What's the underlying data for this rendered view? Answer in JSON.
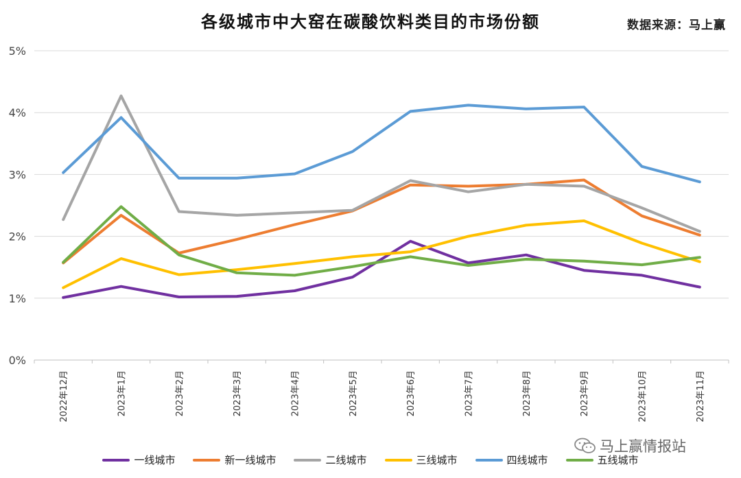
{
  "header": {
    "title": "各级城市中大窑在碳酸饮料类目的市场份额",
    "source_label": "数据来源：",
    "source_value": "马上赢"
  },
  "watermark": {
    "text": "马上赢情报站",
    "icon": "wechat-icon"
  },
  "chart_data": {
    "type": "line",
    "title": "各级城市中大窑在碳酸饮料类目的市场份额",
    "categories": [
      "2022年12月",
      "2023年1月",
      "2023年2月",
      "2023年3月",
      "2023年4月",
      "2023年5月",
      "2023年6月",
      "2023年7月",
      "2023年8月",
      "2023年9月",
      "2023年10月",
      "2023年11月"
    ],
    "ylim": [
      0,
      5
    ],
    "yticks": [
      "0%",
      "1%",
      "2%",
      "3%",
      "4%",
      "5%"
    ],
    "grid": true,
    "legend": "bottom",
    "series": [
      {
        "name": "一线城市",
        "color": "#7030A0",
        "values": [
          1.01,
          1.19,
          1.02,
          1.03,
          1.12,
          1.34,
          1.92,
          1.57,
          1.7,
          1.45,
          1.37,
          1.18
        ]
      },
      {
        "name": "新一线城市",
        "color": "#ED7D31",
        "values": [
          1.57,
          2.34,
          1.73,
          1.95,
          2.19,
          2.41,
          2.83,
          2.81,
          2.84,
          2.91,
          2.33,
          2.02
        ]
      },
      {
        "name": "二线城市",
        "color": "#A5A5A5",
        "values": [
          2.27,
          4.27,
          2.4,
          2.34,
          2.38,
          2.42,
          2.9,
          2.72,
          2.84,
          2.81,
          2.46,
          2.08
        ]
      },
      {
        "name": "三线城市",
        "color": "#FFC000",
        "values": [
          1.17,
          1.64,
          1.38,
          1.46,
          1.56,
          1.67,
          1.75,
          2.0,
          2.18,
          2.25,
          1.89,
          1.59
        ]
      },
      {
        "name": "四线城市",
        "color": "#5B9BD5",
        "values": [
          3.03,
          3.92,
          2.94,
          2.94,
          3.01,
          3.37,
          4.02,
          4.12,
          4.06,
          4.09,
          3.13,
          2.88
        ]
      },
      {
        "name": "五线城市",
        "color": "#70AD47",
        "values": [
          1.58,
          2.48,
          1.7,
          1.41,
          1.37,
          1.51,
          1.67,
          1.53,
          1.63,
          1.6,
          1.54,
          1.66
        ]
      }
    ]
  }
}
